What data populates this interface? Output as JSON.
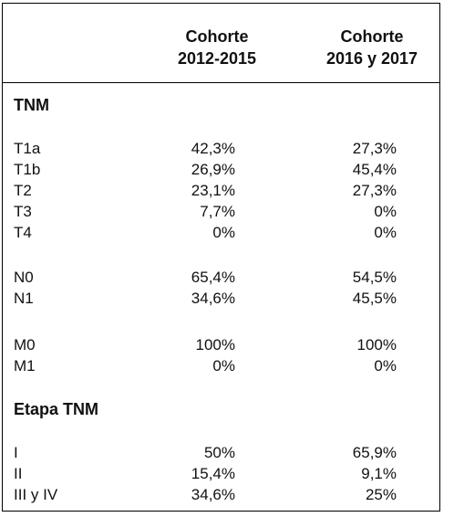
{
  "header": {
    "col1_line1": "Cohorte",
    "col1_line2": "2012-2015",
    "col2_line1": "Cohorte",
    "col2_line2": "2016 y 2017"
  },
  "sections": {
    "tnm": "TNM",
    "etapa": "Etapa TNM"
  },
  "rows": [
    {
      "label": "T1a",
      "c1": "42,3%",
      "c2": "27,3%"
    },
    {
      "label": "T1b",
      "c1": "26,9%",
      "c2": "45,4%"
    },
    {
      "label": "T2",
      "c1": "23,1%",
      "c2": "27,3%"
    },
    {
      "label": "T3",
      "c1": "7,7%",
      "c2": "0%"
    },
    {
      "label": "T4",
      "c1": "0%",
      "c2": "0%"
    },
    {
      "label": "N0",
      "c1": "65,4%",
      "c2": "54,5%"
    },
    {
      "label": "N1",
      "c1": "34,6%",
      "c2": "45,5%"
    },
    {
      "label": "M0",
      "c1": "100%",
      "c2": "100%"
    },
    {
      "label": "M1",
      "c1": "0%",
      "c2": "0%"
    },
    {
      "label": "I",
      "c1": "50%",
      "c2": "65,9%"
    },
    {
      "label": "II",
      "c1": "15,4%",
      "c2": "9,1%"
    },
    {
      "label": "III y IV",
      "c1": "34,6%",
      "c2": "25%"
    }
  ]
}
